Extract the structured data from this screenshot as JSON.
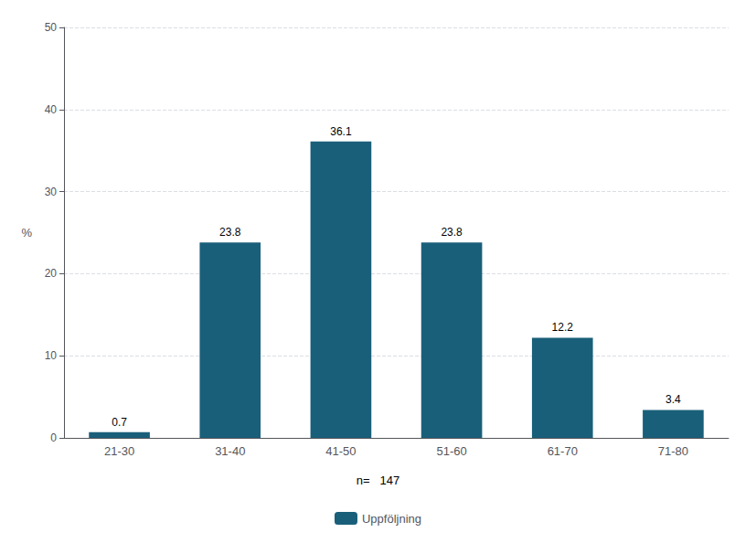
{
  "chart_data": {
    "type": "bar",
    "categories": [
      "21-30",
      "31-40",
      "41-50",
      "51-60",
      "61-70",
      "71-80"
    ],
    "series": [
      {
        "name": "Uppföljning",
        "color": "#1a5f7a",
        "values": [
          0.7,
          23.8,
          36.1,
          23.8,
          12.2,
          3.4
        ]
      }
    ],
    "ylabel": "%",
    "ylim": [
      0,
      50
    ],
    "yticks": [
      0,
      10,
      20,
      30,
      40,
      50
    ],
    "grid": true,
    "data_labels": true,
    "legend": "bottom",
    "annotations": [
      "n=   147"
    ]
  }
}
